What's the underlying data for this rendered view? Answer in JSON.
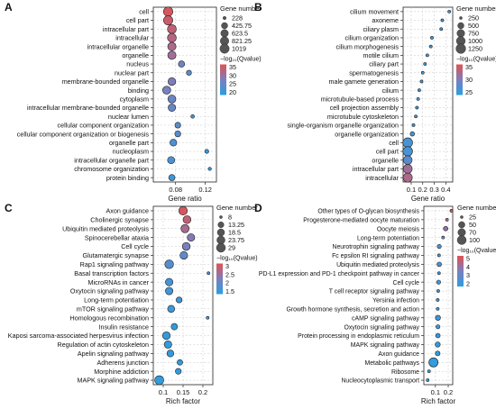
{
  "figure": {
    "colors": {
      "high": "#e05252",
      "mid": "#7a7fbf",
      "low": "#2a9fe0",
      "grid": "#c8c8c8"
    }
  },
  "chart_data": [
    {
      "panel": "A",
      "type": "scatter",
      "xlabel": "Gene ratio",
      "x_ticks": [
        0.08,
        0.12
      ],
      "xlim": [
        0.05,
        0.135
      ],
      "size_legend": {
        "title": "Gene number",
        "labels": [
          "228",
          "425.75",
          "623.5",
          "821.25",
          "1019"
        ],
        "values": [
          228,
          425.75,
          623.5,
          821.25,
          1019
        ]
      },
      "color_legend": {
        "title": "−log₁₀(Qvalue)",
        "labels": [
          "35",
          "30",
          "25",
          "20"
        ],
        "range": [
          18,
          37
        ]
      },
      "categories": [
        "cell",
        "cell part",
        "intracellular part",
        "intracellular",
        "intracellular organelle",
        "organelle",
        "nucleus",
        "nuclear part",
        "membrane-bounded organelle",
        "binding",
        "cytoplasm",
        "intracellular membrane-bounded organelle",
        "nuclear lumen",
        "cellular component organization",
        "cellular component organization or biogenesis",
        "organelle part",
        "nucleoplasm",
        "intracellular organelle part",
        "chromosome organization",
        "protein binding"
      ],
      "points": [
        {
          "x": 0.07,
          "size": 1019,
          "q": 36
        },
        {
          "x": 0.07,
          "size": 1000,
          "q": 35
        },
        {
          "x": 0.075,
          "size": 900,
          "q": 34
        },
        {
          "x": 0.075,
          "size": 880,
          "q": 33
        },
        {
          "x": 0.075,
          "size": 780,
          "q": 32
        },
        {
          "x": 0.075,
          "size": 760,
          "q": 31
        },
        {
          "x": 0.088,
          "size": 430,
          "q": 26
        },
        {
          "x": 0.098,
          "size": 300,
          "q": 24
        },
        {
          "x": 0.075,
          "size": 660,
          "q": 28
        },
        {
          "x": 0.068,
          "size": 720,
          "q": 27
        },
        {
          "x": 0.075,
          "size": 700,
          "q": 26
        },
        {
          "x": 0.075,
          "size": 600,
          "q": 25
        },
        {
          "x": 0.103,
          "size": 230,
          "q": 21
        },
        {
          "x": 0.083,
          "size": 370,
          "q": 24
        },
        {
          "x": 0.083,
          "size": 380,
          "q": 23
        },
        {
          "x": 0.077,
          "size": 500,
          "q": 22
        },
        {
          "x": 0.122,
          "size": 240,
          "q": 20
        },
        {
          "x": 0.074,
          "size": 560,
          "q": 22
        },
        {
          "x": 0.126,
          "size": 228,
          "q": 19
        },
        {
          "x": 0.075,
          "size": 420,
          "q": 20
        }
      ]
    },
    {
      "panel": "B",
      "type": "scatter",
      "xlabel": "Gene ratio",
      "x_ticks": [
        0.1,
        0.2,
        0.3,
        0.4
      ],
      "xlim": [
        0.03,
        0.46
      ],
      "size_legend": {
        "title": "Gene number",
        "labels": [
          "250",
          "500",
          "750",
          "1000",
          "1250"
        ],
        "values": [
          250,
          500,
          750,
          1000,
          1250
        ]
      },
      "color_legend": {
        "title": "−log₁₀(Qvalue)",
        "labels": [
          "35",
          "30",
          "25"
        ],
        "range": [
          22,
          38
        ]
      },
      "categories": [
        "cilium movement",
        "axoneme",
        "ciliary plasm",
        "cilium organization",
        "cilium morphogenesis",
        "motile cilium",
        "ciliary part",
        "spermatogenesis",
        "male gamete generation",
        "cilium",
        "microtubule-based process",
        "cell projection assembly",
        "microtubule cytoskeleton",
        "single-organism organelle organization",
        "organelle organization",
        "cell",
        "cell part",
        "organelle",
        "intracellular part",
        "intracellular"
      ],
      "points": [
        {
          "x": 0.43,
          "size": 60,
          "q": 24
        },
        {
          "x": 0.37,
          "size": 70,
          "q": 24
        },
        {
          "x": 0.36,
          "size": 80,
          "q": 24
        },
        {
          "x": 0.28,
          "size": 110,
          "q": 24
        },
        {
          "x": 0.27,
          "size": 100,
          "q": 24
        },
        {
          "x": 0.24,
          "size": 110,
          "q": 24
        },
        {
          "x": 0.22,
          "size": 120,
          "q": 24
        },
        {
          "x": 0.2,
          "size": 140,
          "q": 24
        },
        {
          "x": 0.19,
          "size": 140,
          "q": 24
        },
        {
          "x": 0.17,
          "size": 160,
          "q": 24
        },
        {
          "x": 0.16,
          "size": 180,
          "q": 24
        },
        {
          "x": 0.15,
          "size": 150,
          "q": 24
        },
        {
          "x": 0.14,
          "size": 200,
          "q": 24
        },
        {
          "x": 0.12,
          "size": 240,
          "q": 24
        },
        {
          "x": 0.11,
          "size": 300,
          "q": 24
        },
        {
          "x": 0.07,
          "size": 1250,
          "q": 25
        },
        {
          "x": 0.07,
          "size": 1230,
          "q": 25
        },
        {
          "x": 0.07,
          "size": 1000,
          "q": 27
        },
        {
          "x": 0.07,
          "size": 1050,
          "q": 33
        },
        {
          "x": 0.07,
          "size": 1100,
          "q": 34
        }
      ]
    },
    {
      "panel": "C",
      "type": "scatter",
      "xlabel": "Rich factor",
      "x_ticks": [
        0.1,
        0.15,
        0.2
      ],
      "xlim": [
        0.075,
        0.225
      ],
      "size_legend": {
        "title": "Gene number",
        "labels": [
          "8",
          "13.25",
          "18.5",
          "23.75",
          "29"
        ],
        "values": [
          8,
          13.25,
          18.5,
          23.75,
          29
        ]
      },
      "color_legend": {
        "title": "−log₁₀(Qvalue)",
        "labels": [
          "3",
          "2.5",
          "2",
          "1.5"
        ],
        "range": [
          1.4,
          3.2
        ]
      },
      "categories": [
        "Axon guidance",
        "Cholinergic synapse",
        "Ubiquitin mediated proteolysis",
        "Spinocerebellar ataxia",
        "Cell cycle",
        "Glutamatergic synapse",
        "Rap1 signaling pathway",
        "Basal transcription factors",
        "MicroRNAs in cancer",
        "Oxytocin signaling pathway",
        "Long-term potentiation",
        "mTOR signaling pathway",
        "Homologous recombination",
        "Insulin resistance",
        "Kaposi sarcoma-associated herpesvirus infection",
        "Regulation of actin cytoskeleton",
        "Apelin signaling pathway",
        "Adherens junction",
        "Morphine addiction",
        "MAPK signaling pathway"
      ],
      "points": [
        {
          "x": 0.15,
          "size": 26,
          "q": 3.1
        },
        {
          "x": 0.16,
          "size": 22,
          "q": 2.9
        },
        {
          "x": 0.155,
          "size": 24,
          "q": 2.7
        },
        {
          "x": 0.17,
          "size": 20,
          "q": 2.4
        },
        {
          "x": 0.158,
          "size": 22,
          "q": 2.3
        },
        {
          "x": 0.152,
          "size": 21,
          "q": 2.0
        },
        {
          "x": 0.115,
          "size": 27,
          "q": 1.9
        },
        {
          "x": 0.214,
          "size": 8,
          "q": 1.8
        },
        {
          "x": 0.115,
          "size": 20,
          "q": 1.7
        },
        {
          "x": 0.115,
          "size": 20,
          "q": 1.7
        },
        {
          "x": 0.14,
          "size": 13,
          "q": 1.6
        },
        {
          "x": 0.12,
          "size": 18,
          "q": 1.6
        },
        {
          "x": 0.212,
          "size": 8,
          "q": 1.6
        },
        {
          "x": 0.128,
          "size": 15,
          "q": 1.5
        },
        {
          "x": 0.108,
          "size": 21,
          "q": 1.5
        },
        {
          "x": 0.112,
          "size": 20,
          "q": 1.5
        },
        {
          "x": 0.118,
          "size": 17,
          "q": 1.5
        },
        {
          "x": 0.142,
          "size": 12,
          "q": 1.5
        },
        {
          "x": 0.138,
          "size": 13,
          "q": 1.5
        },
        {
          "x": 0.09,
          "size": 29,
          "q": 1.5
        }
      ]
    },
    {
      "panel": "D",
      "type": "scatter",
      "xlabel": "Rich factor",
      "x_ticks": [
        0.1,
        0.2
      ],
      "xlim": [
        0.01,
        0.235
      ],
      "size_legend": {
        "title": "Gene number",
        "labels": [
          "25",
          "50",
          "70",
          "100"
        ],
        "values": [
          25,
          50,
          70,
          100
        ]
      },
      "color_legend": {
        "title": "−log₁₀(Qvalue)",
        "labels": [
          "5",
          "4",
          "3",
          "2"
        ],
        "range": [
          1.4,
          5.5
        ]
      },
      "categories": [
        "Other types of O-glycan biosynthesis",
        "Progesterone-mediated oocyte maturation",
        "Oocyte meiosis",
        "Long-term potentiation",
        "Neurotrophin signaling pathway",
        "Fc epsilon RI signaling pathway",
        "Ubiquitin mediated proteolysis",
        "PD-L1 expression and PD-1 checkpoint pathway in cancer",
        "Cell cycle",
        "T cell receptor signaling pathway",
        "Yersinia infection",
        "Growth hormone synthesis, secretion and action",
        "cAMP signaling pathway",
        "Oxytocin signaling pathway",
        "Protein processing in endoplasmic reticulum",
        "MAPK signaling pathway",
        "Axon guidance",
        "Metabolic pathways",
        "Ribosome",
        "Nucleocytoplasmic transport"
      ],
      "points": [
        {
          "x": 0.225,
          "size": 12,
          "q": 5.2
        },
        {
          "x": 0.19,
          "size": 25,
          "q": 4.4
        },
        {
          "x": 0.18,
          "size": 30,
          "q": 4.0
        },
        {
          "x": 0.16,
          "size": 22,
          "q": 3.2
        },
        {
          "x": 0.13,
          "size": 28,
          "q": 2.4
        },
        {
          "x": 0.128,
          "size": 22,
          "q": 2.2
        },
        {
          "x": 0.13,
          "size": 30,
          "q": 2.3
        },
        {
          "x": 0.128,
          "size": 22,
          "q": 2.1
        },
        {
          "x": 0.125,
          "size": 28,
          "q": 2.0
        },
        {
          "x": 0.122,
          "size": 24,
          "q": 2.0
        },
        {
          "x": 0.118,
          "size": 25,
          "q": 1.9
        },
        {
          "x": 0.118,
          "size": 25,
          "q": 1.8
        },
        {
          "x": 0.12,
          "size": 35,
          "q": 1.8
        },
        {
          "x": 0.12,
          "size": 28,
          "q": 1.7
        },
        {
          "x": 0.12,
          "size": 30,
          "q": 1.7
        },
        {
          "x": 0.118,
          "size": 35,
          "q": 1.6
        },
        {
          "x": 0.118,
          "size": 32,
          "q": 1.6
        },
        {
          "x": 0.085,
          "size": 105,
          "q": 1.6
        },
        {
          "x": 0.05,
          "size": 20,
          "q": 1.5
        },
        {
          "x": 0.04,
          "size": 12,
          "q": 1.5
        }
      ]
    }
  ]
}
